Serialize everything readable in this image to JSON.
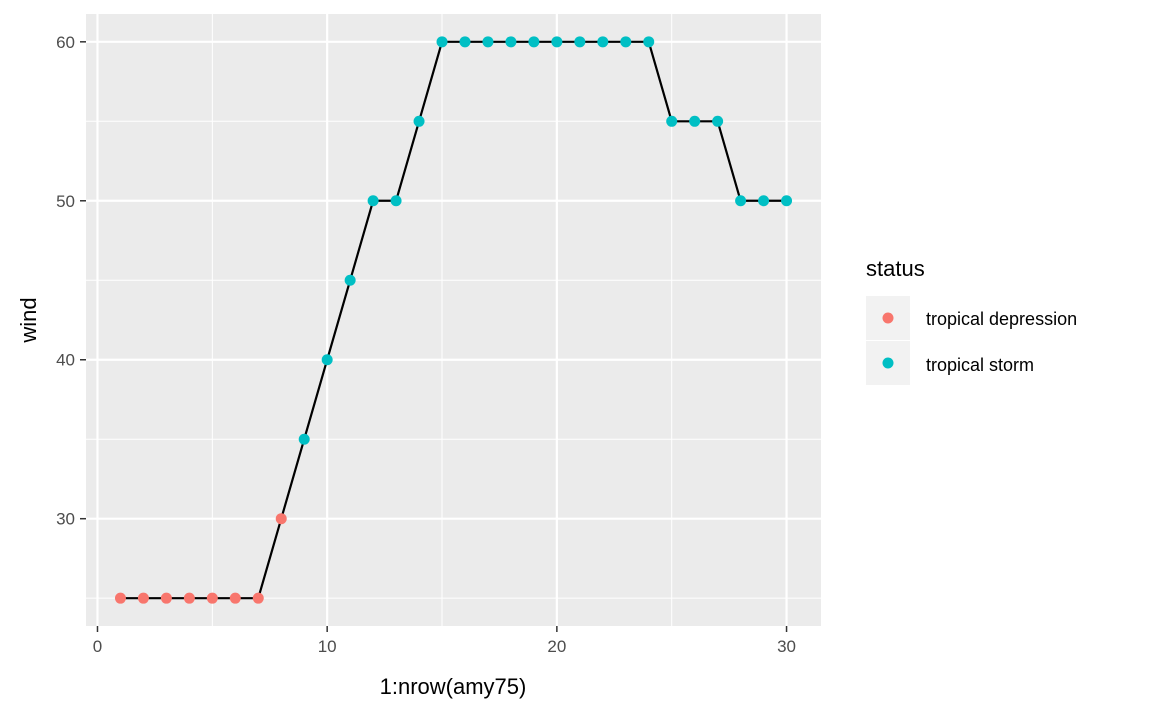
{
  "chart_data": {
    "type": "scatter",
    "title": "",
    "xlabel": "1:nrow(amy75)",
    "ylabel": "wind",
    "xlim": [
      -0.5,
      31.5
    ],
    "ylim": [
      23.25,
      61.75
    ],
    "x_ticks": [
      0,
      10,
      20,
      30
    ],
    "y_ticks": [
      30,
      40,
      50,
      60
    ],
    "x_tick_labels": [
      "0",
      "10",
      "20",
      "30"
    ],
    "y_tick_labels": [
      "30",
      "40",
      "50",
      "60"
    ],
    "grid": true,
    "legend": {
      "title": "status",
      "position": "right",
      "entries": [
        {
          "label": "tropical depression",
          "color": "#F8766D"
        },
        {
          "label": "tropical storm",
          "color": "#00BFC4"
        }
      ]
    },
    "line_color": "#000000",
    "panel_background": "#EBEBEB",
    "points": [
      {
        "x": 1,
        "y": 25,
        "status": "tropical depression"
      },
      {
        "x": 2,
        "y": 25,
        "status": "tropical depression"
      },
      {
        "x": 3,
        "y": 25,
        "status": "tropical depression"
      },
      {
        "x": 4,
        "y": 25,
        "status": "tropical depression"
      },
      {
        "x": 5,
        "y": 25,
        "status": "tropical depression"
      },
      {
        "x": 6,
        "y": 25,
        "status": "tropical depression"
      },
      {
        "x": 7,
        "y": 25,
        "status": "tropical depression"
      },
      {
        "x": 8,
        "y": 30,
        "status": "tropical depression"
      },
      {
        "x": 9,
        "y": 35,
        "status": "tropical storm"
      },
      {
        "x": 10,
        "y": 40,
        "status": "tropical storm"
      },
      {
        "x": 11,
        "y": 45,
        "status": "tropical storm"
      },
      {
        "x": 12,
        "y": 50,
        "status": "tropical storm"
      },
      {
        "x": 13,
        "y": 50,
        "status": "tropical storm"
      },
      {
        "x": 14,
        "y": 55,
        "status": "tropical storm"
      },
      {
        "x": 15,
        "y": 60,
        "status": "tropical storm"
      },
      {
        "x": 16,
        "y": 60,
        "status": "tropical storm"
      },
      {
        "x": 17,
        "y": 60,
        "status": "tropical storm"
      },
      {
        "x": 18,
        "y": 60,
        "status": "tropical storm"
      },
      {
        "x": 19,
        "y": 60,
        "status": "tropical storm"
      },
      {
        "x": 20,
        "y": 60,
        "status": "tropical storm"
      },
      {
        "x": 21,
        "y": 60,
        "status": "tropical storm"
      },
      {
        "x": 22,
        "y": 60,
        "status": "tropical storm"
      },
      {
        "x": 23,
        "y": 60,
        "status": "tropical storm"
      },
      {
        "x": 24,
        "y": 60,
        "status": "tropical storm"
      },
      {
        "x": 25,
        "y": 55,
        "status": "tropical storm"
      },
      {
        "x": 26,
        "y": 55,
        "status": "tropical storm"
      },
      {
        "x": 27,
        "y": 55,
        "status": "tropical storm"
      },
      {
        "x": 28,
        "y": 50,
        "status": "tropical storm"
      },
      {
        "x": 29,
        "y": 50,
        "status": "tropical storm"
      },
      {
        "x": 30,
        "y": 50,
        "status": "tropical storm"
      }
    ]
  }
}
